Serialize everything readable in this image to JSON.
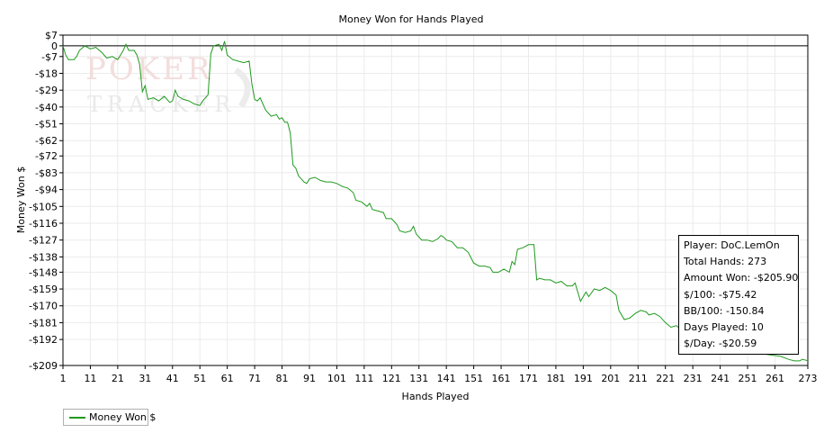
{
  "chart_data": {
    "type": "line",
    "title": "Money Won for Hands Played",
    "xlabel": "Hands Played",
    "ylabel": "Money Won $",
    "xlim": [
      1,
      273
    ],
    "ylim": [
      -209,
      7
    ],
    "x_ticks": [
      1,
      11,
      21,
      31,
      41,
      51,
      61,
      71,
      81,
      91,
      101,
      111,
      121,
      131,
      141,
      151,
      161,
      171,
      181,
      191,
      201,
      211,
      221,
      231,
      241,
      251,
      261,
      273
    ],
    "y_ticks": [
      {
        "value": 7,
        "label": "$7"
      },
      {
        "value": 0,
        "label": "0"
      },
      {
        "value": -7,
        "label": "-$7"
      },
      {
        "value": -18,
        "label": "-$18"
      },
      {
        "value": -29,
        "label": "-$29"
      },
      {
        "value": -40,
        "label": "-$40"
      },
      {
        "value": -51,
        "label": "-$51"
      },
      {
        "value": -62,
        "label": "-$62"
      },
      {
        "value": -72,
        "label": "-$72"
      },
      {
        "value": -83,
        "label": "-$83"
      },
      {
        "value": -94,
        "label": "-$94"
      },
      {
        "value": -105,
        "label": "-$105"
      },
      {
        "value": -116,
        "label": "-$116"
      },
      {
        "value": -127,
        "label": "-$127"
      },
      {
        "value": -138,
        "label": "-$138"
      },
      {
        "value": -148,
        "label": "-$148"
      },
      {
        "value": -159,
        "label": "-$159"
      },
      {
        "value": -170,
        "label": "-$170"
      },
      {
        "value": -181,
        "label": "-$181"
      },
      {
        "value": -192,
        "label": "-$192"
      },
      {
        "value": -209,
        "label": "-$209"
      }
    ],
    "grid": true,
    "legend_position": "bottom-left",
    "series": [
      {
        "name": "Money Won $",
        "color": "#1f9a1f",
        "points": [
          [
            1,
            0
          ],
          [
            2,
            -6
          ],
          [
            3,
            -9
          ],
          [
            5,
            -9
          ],
          [
            6,
            -7
          ],
          [
            7,
            -3
          ],
          [
            9,
            0
          ],
          [
            11,
            -2
          ],
          [
            13,
            -1
          ],
          [
            15,
            -4
          ],
          [
            17,
            -8
          ],
          [
            19,
            -7
          ],
          [
            21,
            -9
          ],
          [
            23,
            -3
          ],
          [
            24,
            1
          ],
          [
            25,
            -3
          ],
          [
            27,
            -3
          ],
          [
            28,
            -6
          ],
          [
            29,
            -12
          ],
          [
            30,
            -30
          ],
          [
            31,
            -26
          ],
          [
            32,
            -35
          ],
          [
            34,
            -34
          ],
          [
            36,
            -36
          ],
          [
            38,
            -33
          ],
          [
            40,
            -37
          ],
          [
            41,
            -36
          ],
          [
            42,
            -29
          ],
          [
            43,
            -33
          ],
          [
            45,
            -35
          ],
          [
            47,
            -36
          ],
          [
            49,
            -38
          ],
          [
            51,
            -39
          ],
          [
            52,
            -36
          ],
          [
            54,
            -32
          ],
          [
            55,
            -5
          ],
          [
            56,
            0
          ],
          [
            58,
            1
          ],
          [
            59,
            -3
          ],
          [
            60,
            3
          ],
          [
            61,
            -6
          ],
          [
            63,
            -9
          ],
          [
            65,
            -10
          ],
          [
            67,
            -11
          ],
          [
            69,
            -10
          ],
          [
            70,
            -25
          ],
          [
            71,
            -35
          ],
          [
            72,
            -36
          ],
          [
            73,
            -34
          ],
          [
            75,
            -42
          ],
          [
            77,
            -46
          ],
          [
            79,
            -45
          ],
          [
            80,
            -48
          ],
          [
            81,
            -47
          ],
          [
            82,
            -50
          ],
          [
            83,
            -50
          ],
          [
            84,
            -57
          ],
          [
            85,
            -78
          ],
          [
            86,
            -80
          ],
          [
            87,
            -85
          ],
          [
            89,
            -89
          ],
          [
            90,
            -90
          ],
          [
            91,
            -87
          ],
          [
            93,
            -86
          ],
          [
            95,
            -88
          ],
          [
            97,
            -89
          ],
          [
            99,
            -89
          ],
          [
            101,
            -90
          ],
          [
            103,
            -92
          ],
          [
            105,
            -93
          ],
          [
            107,
            -96
          ],
          [
            108,
            -101
          ],
          [
            110,
            -102
          ],
          [
            112,
            -105
          ],
          [
            113,
            -103
          ],
          [
            114,
            -107
          ],
          [
            116,
            -108
          ],
          [
            118,
            -109
          ],
          [
            119,
            -113
          ],
          [
            121,
            -113
          ],
          [
            123,
            -117
          ],
          [
            124,
            -121
          ],
          [
            126,
            -122
          ],
          [
            128,
            -121
          ],
          [
            129,
            -118
          ],
          [
            130,
            -123
          ],
          [
            132,
            -127
          ],
          [
            134,
            -127
          ],
          [
            136,
            -128
          ],
          [
            138,
            -126
          ],
          [
            139,
            -124
          ],
          [
            140,
            -125
          ],
          [
            141,
            -127
          ],
          [
            143,
            -128
          ],
          [
            145,
            -132
          ],
          [
            147,
            -132
          ],
          [
            149,
            -135
          ],
          [
            151,
            -142
          ],
          [
            153,
            -144
          ],
          [
            155,
            -144
          ],
          [
            157,
            -145
          ],
          [
            158,
            -148
          ],
          [
            160,
            -148
          ],
          [
            161,
            -147
          ],
          [
            162,
            -146
          ],
          [
            164,
            -148
          ],
          [
            165,
            -141
          ],
          [
            166,
            -143
          ],
          [
            167,
            -133
          ],
          [
            169,
            -132
          ],
          [
            171,
            -130
          ],
          [
            173,
            -130
          ],
          [
            174,
            -153
          ],
          [
            175,
            -152
          ],
          [
            177,
            -153
          ],
          [
            179,
            -153
          ],
          [
            181,
            -155
          ],
          [
            183,
            -154
          ],
          [
            185,
            -157
          ],
          [
            187,
            -157
          ],
          [
            188,
            -155
          ],
          [
            190,
            -167
          ],
          [
            192,
            -161
          ],
          [
            193,
            -164
          ],
          [
            195,
            -159
          ],
          [
            197,
            -160
          ],
          [
            199,
            -158
          ],
          [
            201,
            -160
          ],
          [
            203,
            -163
          ],
          [
            204,
            -173
          ],
          [
            206,
            -179
          ],
          [
            208,
            -178
          ],
          [
            210,
            -175
          ],
          [
            212,
            -173
          ],
          [
            214,
            -174
          ],
          [
            215,
            -176
          ],
          [
            217,
            -175
          ],
          [
            219,
            -177
          ],
          [
            221,
            -181
          ],
          [
            223,
            -184
          ],
          [
            225,
            -183
          ],
          [
            227,
            -186
          ],
          [
            229,
            -187
          ],
          [
            231,
            -189
          ],
          [
            233,
            -190
          ],
          [
            236,
            -194
          ],
          [
            239,
            -195
          ],
          [
            243,
            -198
          ],
          [
            247,
            -199
          ],
          [
            251,
            -200
          ],
          [
            255,
            -201
          ],
          [
            259,
            -202
          ],
          [
            263,
            -203
          ],
          [
            266,
            -205
          ],
          [
            268,
            -206
          ],
          [
            270,
            -206
          ],
          [
            271,
            -205
          ],
          [
            273,
            -205.9
          ]
        ]
      }
    ]
  },
  "stats_box": {
    "player": "Player: DoC.LemOn",
    "total_hands": "Total Hands: 273",
    "amount_won": "Amount Won: -$205.90",
    "per_100": "$/100: -$75.42",
    "bb_per_100": "BB/100: -150.84",
    "days_played": "Days Played: 10",
    "per_day": "$/Day: -$20.59"
  },
  "watermark": {
    "line1": "POKER",
    "line2": "TRACKER"
  },
  "colors": {
    "series": "#1f9a1f",
    "grid": "#ebebeb",
    "watermark": "#f0dada"
  }
}
